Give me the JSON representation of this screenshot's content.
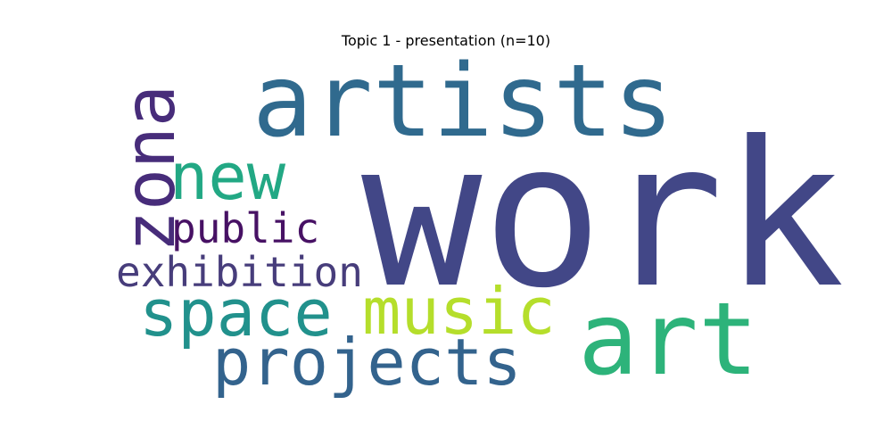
{
  "title": "Topic 1 - presentation (n=10)",
  "words": {
    "work": {
      "text": "work",
      "color": "#424787"
    },
    "artists": {
      "text": "artists",
      "color": "#306a8e"
    },
    "art": {
      "text": "art",
      "color": "#2db37a"
    },
    "zona": {
      "text": "zona",
      "color": "#472c7a"
    },
    "new": {
      "text": "new",
      "color": "#22a884"
    },
    "public": {
      "text": "public",
      "color": "#471164"
    },
    "exhibition": {
      "text": "exhibition",
      "color": "#473d7b"
    },
    "space": {
      "text": "space",
      "color": "#21918c"
    },
    "music": {
      "text": "music",
      "color": "#b5de2b"
    },
    "projects": {
      "text": "projects",
      "color": "#33638d"
    }
  }
}
